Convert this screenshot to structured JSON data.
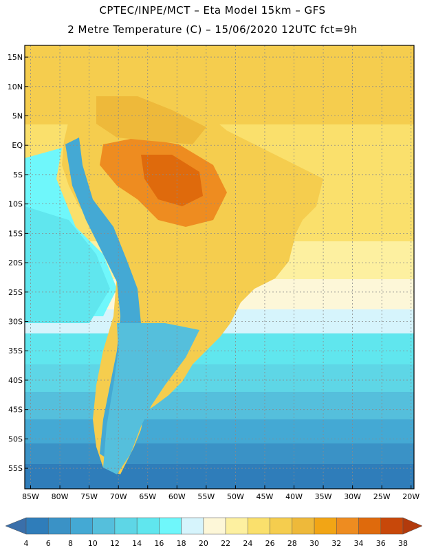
{
  "title": {
    "line1": "CPTEC/INPE/MCT –  Eta Model 15km – GFS",
    "line2": "2 Metre Temperature (C) – 15/06/2020 12UTC fct=9h"
  },
  "map": {
    "lat_labels": [
      "15N",
      "10N",
      "5N",
      "EQ",
      "5S",
      "10S",
      "15S",
      "20S",
      "25S",
      "30S",
      "35S",
      "40S",
      "45S",
      "50S",
      "55S"
    ],
    "lon_labels": [
      "85W",
      "80W",
      "75W",
      "70W",
      "65W",
      "60W",
      "55W",
      "50W",
      "45W",
      "40W",
      "35W",
      "30W",
      "25W",
      "20W"
    ],
    "lat_values": [
      15,
      10,
      5,
      0,
      -5,
      -10,
      -15,
      -20,
      -25,
      -30,
      -35,
      -40,
      -45,
      -50,
      -55
    ],
    "lon_values": [
      -85,
      -80,
      -75,
      -70,
      -65,
      -60,
      -55,
      -50,
      -45,
      -40,
      -35,
      -30,
      -25,
      -20
    ]
  },
  "colorbar": {
    "labels": [
      "4",
      "6",
      "8",
      "10",
      "12",
      "14",
      "16",
      "18",
      "20",
      "22",
      "24",
      "26",
      "28",
      "30",
      "32",
      "34",
      "36",
      "38"
    ],
    "colors": [
      "#3a6faa",
      "#2f7dba",
      "#3a92c6",
      "#44a9d4",
      "#55bfdc",
      "#5ed6e6",
      "#60e6ee",
      "#6ff7fb",
      "#d6f4fc",
      "#fdf7d8",
      "#fdf0a0",
      "#fae06c",
      "#f5cd4e",
      "#eeb93a",
      "#f2a515",
      "#ee8c20",
      "#df6a0c",
      "#c8480a",
      "#b23a0c"
    ]
  }
}
